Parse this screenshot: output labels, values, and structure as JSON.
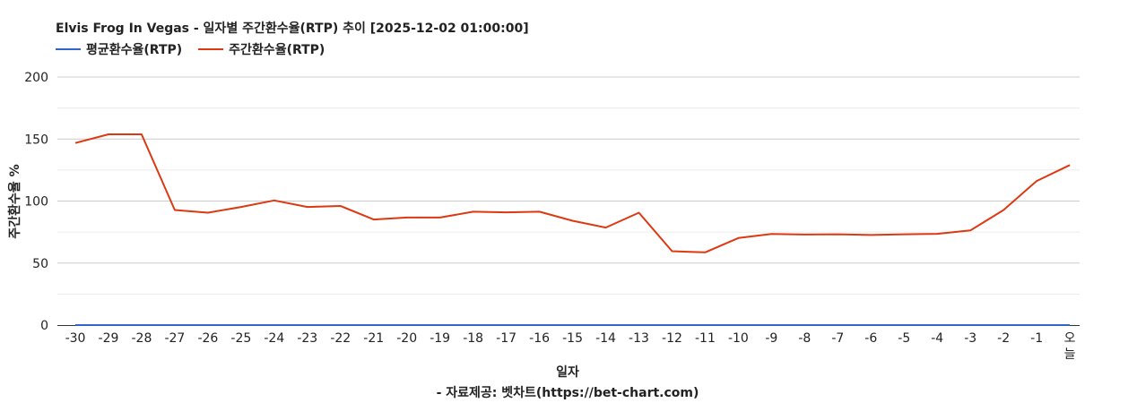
{
  "chart_data": {
    "type": "line",
    "title": "Elvis Frog In Vegas - 일자별 주간환수율(RTP) 추이 [2025-12-02 01:00:00]",
    "xlabel": "일자",
    "ylabel": "주간환수율 %",
    "source": "- 자료제공: 벳차트(https://bet-chart.com)",
    "ylim": [
      0,
      200
    ],
    "yticks": [
      "200",
      "150",
      "100",
      "50",
      "0"
    ],
    "grid": true,
    "legend_position": "top-left",
    "categories": [
      "-30",
      "-29",
      "-28",
      "-27",
      "-26",
      "-25",
      "-24",
      "-23",
      "-22",
      "-21",
      "-20",
      "-19",
      "-18",
      "-17",
      "-16",
      "-15",
      "-14",
      "-13",
      "-12",
      "-11",
      "-10",
      "-9",
      "-8",
      "-7",
      "-6",
      "-5",
      "-4",
      "-3",
      "-2",
      "-1",
      "오늘"
    ],
    "series": [
      {
        "name": "평균환수율(RTP)",
        "color": "#3366cc",
        "values": [
          0,
          0,
          0,
          0,
          0,
          0,
          0,
          0,
          0,
          0,
          0,
          0,
          0,
          0,
          0,
          0,
          0,
          0,
          0,
          0,
          0,
          0,
          0,
          0,
          0,
          0,
          0,
          0,
          0,
          0,
          0
        ]
      },
      {
        "name": "주간환수율(RTP)",
        "color": "#dc3912",
        "values": [
          146.8,
          153.8,
          153.8,
          92.8,
          90.6,
          95.2,
          100.5,
          95.2,
          96.0,
          85.1,
          86.7,
          86.7,
          91.4,
          90.9,
          91.4,
          84.1,
          78.6,
          90.6,
          59.6,
          58.6,
          70.2,
          73.4,
          73.0,
          73.2,
          72.6,
          73.2,
          73.6,
          76.3,
          92.8,
          116.2,
          129.0
        ]
      }
    ]
  }
}
